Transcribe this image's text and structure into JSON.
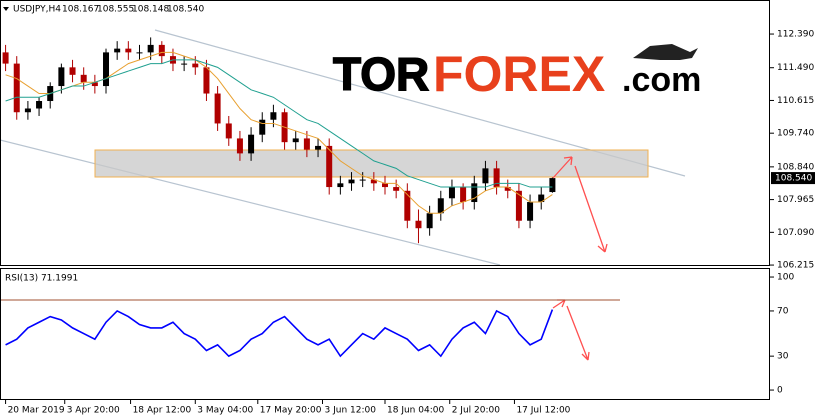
{
  "chart_data": [
    {
      "type": "candlestick",
      "title": "USDJPY,H4",
      "ohlc_label": [
        "108.167",
        "108.555",
        "108.148",
        "108.540"
      ],
      "up_color": "#000000",
      "down_color": "#b00000",
      "open": [
        111.9,
        111.6,
        110.3,
        110.4,
        110.6,
        111.0,
        111.5,
        111.3,
        111.1,
        111.0,
        111.9,
        112.0,
        111.9,
        111.9,
        112.1,
        111.8,
        111.6,
        111.6,
        111.5,
        110.8,
        110.0,
        109.6,
        109.2,
        109.7,
        110.1,
        110.3,
        109.5,
        109.6,
        109.3,
        109.4,
        108.3,
        108.4,
        108.5,
        108.5,
        108.4,
        108.3,
        108.2,
        107.4,
        107.2,
        107.6,
        108.0,
        108.3,
        107.9,
        108.4,
        108.8,
        108.3,
        108.2,
        107.4,
        107.9,
        108.167
      ],
      "high": [
        112.1,
        111.8,
        110.6,
        110.7,
        111.1,
        111.6,
        111.7,
        111.5,
        111.3,
        112.0,
        112.2,
        112.2,
        112.1,
        112.3,
        112.2,
        112.0,
        111.8,
        111.8,
        111.7,
        111.0,
        110.2,
        109.8,
        109.9,
        110.3,
        110.5,
        110.4,
        109.8,
        109.8,
        109.6,
        109.6,
        108.6,
        108.7,
        108.7,
        108.7,
        108.6,
        108.5,
        108.4,
        107.7,
        107.8,
        108.2,
        108.5,
        108.4,
        108.6,
        109.0,
        109.0,
        108.5,
        108.4,
        108.1,
        108.3,
        108.555
      ],
      "low": [
        111.4,
        110.1,
        110.1,
        110.2,
        110.4,
        110.8,
        111.1,
        110.9,
        110.8,
        110.8,
        111.7,
        111.7,
        111.7,
        111.7,
        111.6,
        111.4,
        111.4,
        111.3,
        110.6,
        109.8,
        109.4,
        109.0,
        109.0,
        109.5,
        109.9,
        109.3,
        109.3,
        109.1,
        109.1,
        108.1,
        108.1,
        108.2,
        108.3,
        108.2,
        108.1,
        108.0,
        107.2,
        106.8,
        107.0,
        107.4,
        107.8,
        107.7,
        107.7,
        108.2,
        108.1,
        108.0,
        107.2,
        107.2,
        107.7,
        108.148
      ],
      "close": [
        111.6,
        110.3,
        110.4,
        110.6,
        111.0,
        111.5,
        111.3,
        111.1,
        111.0,
        111.9,
        112.0,
        111.9,
        111.9,
        112.1,
        111.8,
        111.6,
        111.6,
        111.5,
        110.8,
        110.0,
        109.6,
        109.2,
        109.7,
        110.1,
        110.3,
        109.5,
        109.6,
        109.3,
        109.4,
        108.3,
        108.4,
        108.5,
        108.5,
        108.4,
        108.3,
        108.2,
        107.4,
        107.2,
        107.6,
        108.0,
        108.3,
        107.9,
        108.4,
        108.8,
        108.3,
        108.2,
        107.4,
        107.9,
        108.1,
        108.54
      ],
      "overlays": [
        {
          "color": "#e8a030",
          "values": [
            111.3,
            111.2,
            111.0,
            110.8,
            110.8,
            110.9,
            111.0,
            111.1,
            111.1,
            111.2,
            111.4,
            111.6,
            111.7,
            111.8,
            111.9,
            111.9,
            111.8,
            111.7,
            111.5,
            111.2,
            110.8,
            110.4,
            110.1,
            110.0,
            110.0,
            109.9,
            109.8,
            109.7,
            109.6,
            109.3,
            109.0,
            108.8,
            108.6,
            108.5,
            108.4,
            108.4,
            108.1,
            107.8,
            107.6,
            107.6,
            107.8,
            107.9,
            108.0,
            108.2,
            108.3,
            108.3,
            108.1,
            107.9,
            107.9,
            108.1
          ]
        },
        {
          "color": "#20a090",
          "values": [
            110.6,
            110.7,
            110.7,
            110.7,
            110.8,
            110.9,
            111.0,
            111.0,
            111.1,
            111.2,
            111.3,
            111.4,
            111.5,
            111.6,
            111.6,
            111.7,
            111.7,
            111.7,
            111.6,
            111.5,
            111.3,
            111.1,
            110.9,
            110.8,
            110.7,
            110.5,
            110.3,
            110.1,
            110.0,
            109.8,
            109.6,
            109.4,
            109.2,
            109.0,
            108.9,
            108.8,
            108.6,
            108.5,
            108.4,
            108.3,
            108.3,
            108.3,
            108.3,
            108.3,
            108.4,
            108.4,
            108.4,
            108.3,
            108.3,
            108.3
          ]
        }
      ],
      "last_price": {
        "value": 108.54,
        "label": "108.540"
      },
      "xlim": [
        -0.5,
        68.5
      ],
      "ylim": [
        106.19,
        113.3
      ],
      "yticks": [
        {
          "value": 112.39,
          "label": "112.390"
        },
        {
          "value": 111.49,
          "label": "111.490"
        },
        110.615,
        {
          "value": 109.74,
          "label": "109.740"
        },
        {
          "value": 108.84,
          "label": "108.840"
        },
        107.965,
        {
          "value": 107.09,
          "label": "107.090"
        },
        106.215
      ]
    },
    {
      "type": "line",
      "title": "RSI(13) 71.1991",
      "color": "#0000ff",
      "values": [
        40,
        45,
        55,
        60,
        65,
        62,
        55,
        50,
        45,
        60,
        70,
        65,
        58,
        55,
        55,
        60,
        50,
        45,
        35,
        40,
        30,
        35,
        45,
        50,
        60,
        65,
        55,
        45,
        40,
        45,
        30,
        40,
        50,
        45,
        55,
        50,
        45,
        35,
        40,
        30,
        45,
        55,
        60,
        50,
        70,
        65,
        50,
        40,
        45,
        71.1991
      ],
      "xlim": [
        -0.5,
        68.5
      ],
      "ylim": [
        -8.8,
        108
      ],
      "yticks": [
        100,
        70,
        30,
        0
      ],
      "xticks": [
        {
          "value": 0,
          "label": "20 Mar 2019"
        },
        {
          "value": 5.3,
          "label": "3 Apr 20:00"
        },
        {
          "value": 11.2,
          "label": "18 Apr 12:00"
        },
        {
          "value": 17,
          "label": "3 May 04:00"
        },
        {
          "value": 22.6,
          "label": "17 May 20:00"
        },
        {
          "value": 28.4,
          "label": "3 Jun 12:00"
        },
        {
          "value": 34,
          "label": "18 Jun 04:00"
        },
        {
          "value": 39.8,
          "label": "2 Jul 20:00"
        },
        {
          "value": 45.6,
          "label": "17 Jul 12:00"
        }
      ]
    }
  ],
  "watermark": {
    "tor": "TOR",
    "forex": "FOREX",
    "com": ".com"
  }
}
